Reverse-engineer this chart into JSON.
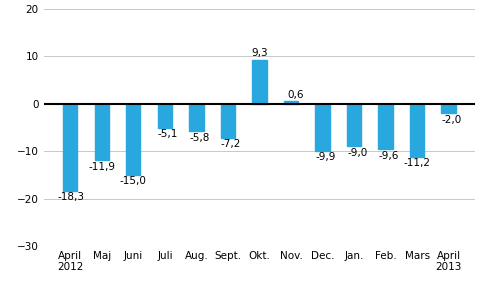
{
  "categories": [
    "April\n2012",
    "Maj",
    "Juni",
    "Juli",
    "Aug.",
    "Sept.",
    "Okt.",
    "Nov.",
    "Dec.",
    "Jan.",
    "Feb.",
    "Mars",
    "April\n2013"
  ],
  "values": [
    -18.3,
    -11.9,
    -15.0,
    -5.1,
    -5.8,
    -7.2,
    9.3,
    0.6,
    -9.9,
    -9.0,
    -9.6,
    -11.2,
    -2.0
  ],
  "bar_color": "#29a8e0",
  "ylim": [
    -30,
    20
  ],
  "yticks": [
    -30,
    -20,
    -10,
    0,
    10,
    20
  ],
  "value_labels": [
    "-18,3",
    "-11,9",
    "-15,0",
    "-5,1",
    "-5,8",
    "-7,2",
    "9,3",
    "0,6",
    "-9,9",
    "-9,0",
    "-9,6",
    "-11,2",
    "-2,0"
  ],
  "label_ha": [
    "left",
    "right",
    "right",
    "right",
    "right",
    "right",
    "center",
    "right",
    "right",
    "right",
    "right",
    "right",
    "right"
  ],
  "label_x_offsets": [
    -0.42,
    0.42,
    0.42,
    0.42,
    0.42,
    0.42,
    0.0,
    0.42,
    0.42,
    0.42,
    0.42,
    0.42,
    0.42
  ],
  "background_color": "#ffffff",
  "grid_color": "#c8c8c8",
  "bar_width": 0.45,
  "tick_fontsize": 7.5,
  "label_fontsize": 7.5
}
